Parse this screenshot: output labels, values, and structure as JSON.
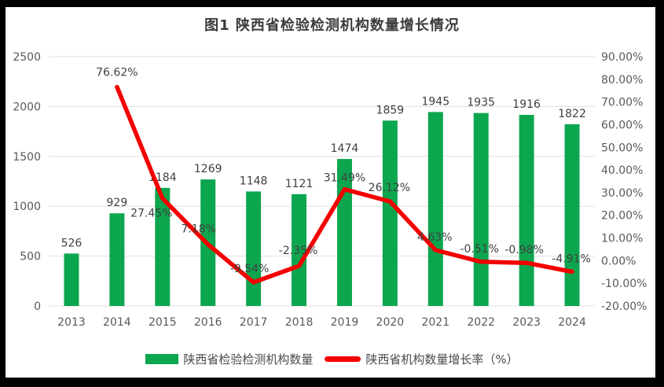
{
  "title": "图1 陕西省检验检测机构数量增长情况",
  "colors": {
    "bar": "#0ca64f",
    "line": "#f40000",
    "grid": "#e0e0e0",
    "axis_text": "#595959",
    "data_label": "#404040",
    "title_text": "#3b3b3b",
    "frame": "#000000",
    "chart_background": "#ffffff"
  },
  "legend": {
    "bar_label": "陕西省检验检测机构数量",
    "line_label": "陕西省机构数量增长率（%）"
  },
  "chart_data": {
    "type": "bar+line",
    "title": "图1 陕西省检验检测机构数量增长情况",
    "categories": [
      "2013",
      "2014",
      "2015",
      "2016",
      "2017",
      "2018",
      "2019",
      "2020",
      "2021",
      "2022",
      "2023",
      "2024"
    ],
    "series": [
      {
        "name": "陕西省检验检测机构数量",
        "type": "bar",
        "axis": "left",
        "values": [
          526,
          929,
          1184,
          1269,
          1148,
          1121,
          1474,
          1859,
          1945,
          1935,
          1916,
          1822
        ],
        "data_labels": [
          "526",
          "929",
          "1184",
          "1269",
          "1148",
          "1121",
          "1474",
          "1859",
          "1945",
          "1935",
          "1916",
          "1822"
        ]
      },
      {
        "name": "陕西省机构数量增长率（%）",
        "type": "line",
        "axis": "right",
        "start_category_index": 1,
        "values": [
          76.62,
          27.45,
          7.18,
          -9.54,
          -2.35,
          31.49,
          26.12,
          4.63,
          -0.51,
          -0.98,
          -4.91
        ],
        "data_labels": [
          "76.62%",
          "27.45%",
          "7.18%",
          "-9.54%",
          "-2.35%",
          "31.49%",
          "26.12%",
          "4.63%",
          "-0.51%",
          "-0.98%",
          "-4.91%"
        ]
      }
    ],
    "left_axis": {
      "min": 0,
      "max": 2500,
      "step": 500,
      "tick_labels": [
        "0",
        "500",
        "1000",
        "1500",
        "2000",
        "2500"
      ]
    },
    "right_axis": {
      "min": -20,
      "max": 90,
      "step": 10,
      "tick_labels": [
        "90.00%",
        "80.00%",
        "70.00%",
        "60.00%",
        "50.00%",
        "40.00%",
        "30.00%",
        "20.00%",
        "10.00%",
        "0.00%",
        "-10.00%",
        "-20.00%"
      ]
    },
    "grid": true,
    "legend_position": "bottom-center"
  }
}
